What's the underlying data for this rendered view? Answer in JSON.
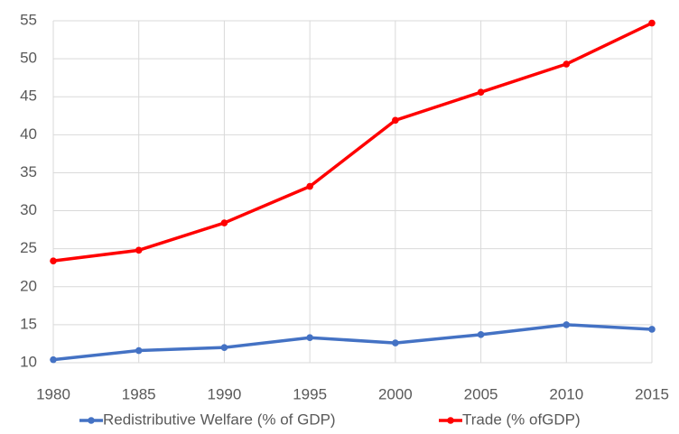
{
  "chart_data": {
    "type": "line",
    "x": [
      1980,
      1985,
      1990,
      1995,
      2000,
      2005,
      2010,
      2015
    ],
    "series": [
      {
        "name": "Redistributive Welfare (% of GDP)",
        "color": "#4472c4",
        "values": [
          10.4,
          11.6,
          12.0,
          13.3,
          12.6,
          13.7,
          15.0,
          14.4
        ]
      },
      {
        "name": "Trade (% ofGDP)",
        "color": "#ff0000",
        "values": [
          23.4,
          24.8,
          28.4,
          33.2,
          41.9,
          45.6,
          49.3,
          54.7
        ]
      }
    ],
    "xlim": [
      1980,
      2015
    ],
    "xticks": [
      1980,
      1985,
      1990,
      1995,
      2000,
      2005,
      2010,
      2015
    ],
    "ylim": [
      10,
      55
    ],
    "yticks": [
      10,
      15,
      20,
      25,
      30,
      35,
      40,
      45,
      50,
      55
    ],
    "grid": true,
    "legend": "bottom"
  }
}
